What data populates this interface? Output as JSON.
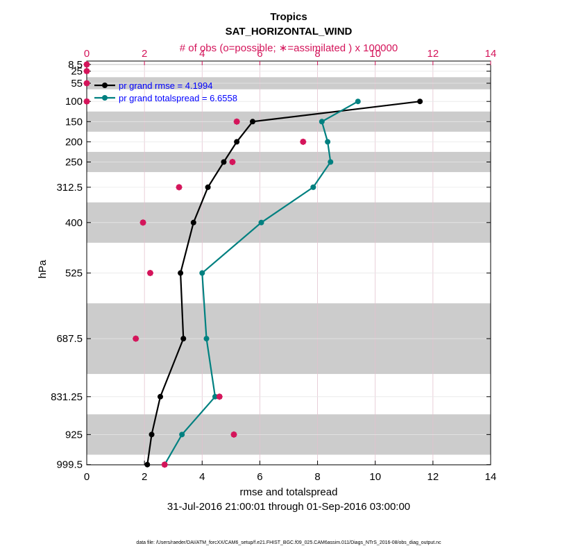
{
  "colors": {
    "obs_axis": "#d4145a",
    "rmse": "#000000",
    "spread": "#008080",
    "legend_text": "#0000ff",
    "band": "#cccccc",
    "grid": "#e8e8e8"
  },
  "chart_data": {
    "type": "line",
    "title": "Tropics",
    "subtitle": "SAT_HORIZONTAL_WIND",
    "top_axis_label": "# of obs (o=possible; ∗=assimilated ) x 100000",
    "xlabel": "rmse and totalspread",
    "ylabel": "hPa",
    "date_range": "31-Jul-2016 21:00:01 through 01-Sep-2016 03:00:00",
    "footnote": "data file: /Users/raeder/DAI/ATM_forcXX/CAM6_setup/f.e21.FHIST_BGC.f09_025.CAM6assim.011/Diags_NTrS_2016-08/obs_diag_output.nc",
    "xlim": [
      0,
      14
    ],
    "xticks": [
      "0",
      "2",
      "4",
      "6",
      "8",
      "10",
      "12",
      "14"
    ],
    "top_xlim": [
      0,
      14
    ],
    "top_xticks": [
      "0",
      "2",
      "4",
      "6",
      "8",
      "10",
      "12",
      "14"
    ],
    "levels": [
      8.5,
      25,
      55,
      100,
      150,
      200,
      250,
      312.5,
      400,
      525,
      687.5,
      831.25,
      925,
      999.5
    ],
    "level_labels": [
      "8.5",
      "25",
      "55",
      "100",
      "150",
      "200",
      "250",
      "312.5",
      "400",
      "525",
      "687.5",
      "831.25",
      "925",
      "999.5"
    ],
    "ylim_hPa": [
      1000,
      0
    ],
    "band_ranges_hPa": [
      [
        7,
        10
      ],
      [
        40,
        70
      ],
      [
        125,
        175
      ],
      [
        225,
        275
      ],
      [
        350,
        450
      ],
      [
        600,
        775
      ],
      [
        875,
        975
      ]
    ],
    "legend": [
      "pr grand rmse = 4.1994",
      "pr grand totalspread = 6.6558"
    ],
    "series": [
      {
        "name": "rmse",
        "levels": [
          100,
          150,
          200,
          250,
          312.5,
          400,
          525,
          687.5,
          831.25,
          925,
          999.5
        ],
        "values": [
          11.55,
          5.75,
          5.2,
          4.75,
          4.2,
          3.7,
          3.25,
          3.35,
          2.55,
          2.25,
          2.1
        ]
      },
      {
        "name": "totalspread",
        "levels": [
          100,
          150,
          200,
          250,
          312.5,
          400,
          525,
          687.5,
          831.25,
          925,
          999.5
        ],
        "values": [
          9.4,
          8.15,
          8.35,
          8.45,
          7.85,
          6.05,
          4.0,
          4.15,
          4.45,
          3.3,
          2.7
        ]
      }
    ],
    "obs_possible": {
      "levels": [
        8.5,
        25,
        55,
        100,
        150,
        200,
        250,
        312.5,
        400,
        525,
        687.5,
        831.25,
        925,
        999.5
      ],
      "values": [
        0.0,
        0.0,
        0.0,
        0.0,
        5.2,
        7.5,
        5.05,
        3.2,
        1.95,
        2.2,
        1.7,
        4.6,
        5.1,
        2.7
      ]
    },
    "obs_assimilated": {
      "levels": [
        8.5,
        25,
        55,
        100,
        150,
        200,
        250,
        312.5,
        400,
        525,
        687.5,
        831.25,
        925,
        999.5
      ],
      "values": [
        0.0,
        0.0,
        0.0,
        0.0,
        5.2,
        7.5,
        5.05,
        3.2,
        1.95,
        2.2,
        1.7,
        4.6,
        5.1,
        2.7
      ]
    }
  }
}
